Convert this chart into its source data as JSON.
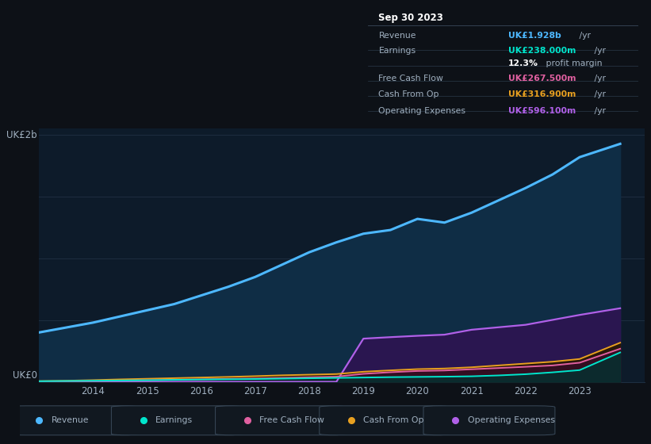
{
  "years": [
    2013.0,
    2013.5,
    2014.0,
    2014.5,
    2015.0,
    2015.5,
    2016.0,
    2016.5,
    2017.0,
    2017.5,
    2018.0,
    2018.5,
    2019.0,
    2019.5,
    2020.0,
    2020.5,
    2021.0,
    2021.5,
    2022.0,
    2022.5,
    2023.0,
    2023.75
  ],
  "revenue": [
    0.4,
    0.44,
    0.48,
    0.53,
    0.58,
    0.63,
    0.7,
    0.77,
    0.85,
    0.95,
    1.05,
    1.13,
    1.2,
    1.23,
    1.32,
    1.29,
    1.37,
    1.47,
    1.57,
    1.68,
    1.82,
    1.928
  ],
  "earnings": [
    0.005,
    0.007,
    0.009,
    0.011,
    0.013,
    0.016,
    0.019,
    0.021,
    0.023,
    0.026,
    0.029,
    0.032,
    0.035,
    0.038,
    0.04,
    0.042,
    0.045,
    0.052,
    0.062,
    0.077,
    0.095,
    0.238
  ],
  "free_cash_flow": [
    0.004,
    0.005,
    0.007,
    0.01,
    0.013,
    0.017,
    0.02,
    0.024,
    0.027,
    0.032,
    0.037,
    0.042,
    0.065,
    0.078,
    0.088,
    0.092,
    0.102,
    0.112,
    0.122,
    0.133,
    0.155,
    0.268
  ],
  "cash_from_op": [
    0.006,
    0.009,
    0.014,
    0.02,
    0.025,
    0.03,
    0.035,
    0.04,
    0.046,
    0.053,
    0.058,
    0.063,
    0.082,
    0.093,
    0.103,
    0.108,
    0.118,
    0.133,
    0.148,
    0.163,
    0.185,
    0.317
  ],
  "operating_expenses": [
    0.0,
    0.0,
    0.0,
    0.0,
    0.0,
    0.0,
    0.0,
    0.0,
    0.0,
    0.0,
    0.0,
    0.0,
    0.35,
    0.362,
    0.373,
    0.382,
    0.422,
    0.442,
    0.462,
    0.502,
    0.542,
    0.596
  ],
  "bg_color": "#0d1117",
  "plot_bg_color": "#0d1b2a",
  "revenue_color": "#4db8ff",
  "earnings_color": "#00e5cc",
  "fcf_color": "#e060a0",
  "cashop_color": "#e8a020",
  "opex_color": "#b060e8",
  "revenue_fill": "#0f2d45",
  "opex_fill": "#2a1650",
  "earnings_fill": "#063030",
  "fcf_fill": "#350d25",
  "cashop_fill": "#2a1800",
  "grid_color": "#1e2e40",
  "text_color": "#a0b0c0",
  "y_label_top": "UK£2b",
  "y_label_bottom": "UK£0",
  "x_ticks": [
    2014,
    2015,
    2016,
    2017,
    2018,
    2019,
    2020,
    2021,
    2022,
    2023
  ],
  "info_box": {
    "title": "Sep 30 2023",
    "rows": [
      {
        "label": "Revenue",
        "value": "UK£1.928b /yr",
        "value_color": "#4db8ff"
      },
      {
        "label": "Earnings",
        "value": "UK£238.000m /yr",
        "value_color": "#00e5cc"
      },
      {
        "label": "",
        "value": "12.3% profit margin",
        "value_color": "#ffffff",
        "mixed": true
      },
      {
        "label": "Free Cash Flow",
        "value": "UK£267.500m /yr",
        "value_color": "#e060a0"
      },
      {
        "label": "Cash From Op",
        "value": "UK£316.900m /yr",
        "value_color": "#e8a020"
      },
      {
        "label": "Operating Expenses",
        "value": "UK£596.100m /yr",
        "value_color": "#b060e8"
      }
    ]
  },
  "legend_items": [
    {
      "label": "Revenue",
      "color": "#4db8ff"
    },
    {
      "label": "Earnings",
      "color": "#00e5cc"
    },
    {
      "label": "Free Cash Flow",
      "color": "#e060a0"
    },
    {
      "label": "Cash From Op",
      "color": "#e8a020"
    },
    {
      "label": "Operating Expenses",
      "color": "#b060e8"
    }
  ]
}
